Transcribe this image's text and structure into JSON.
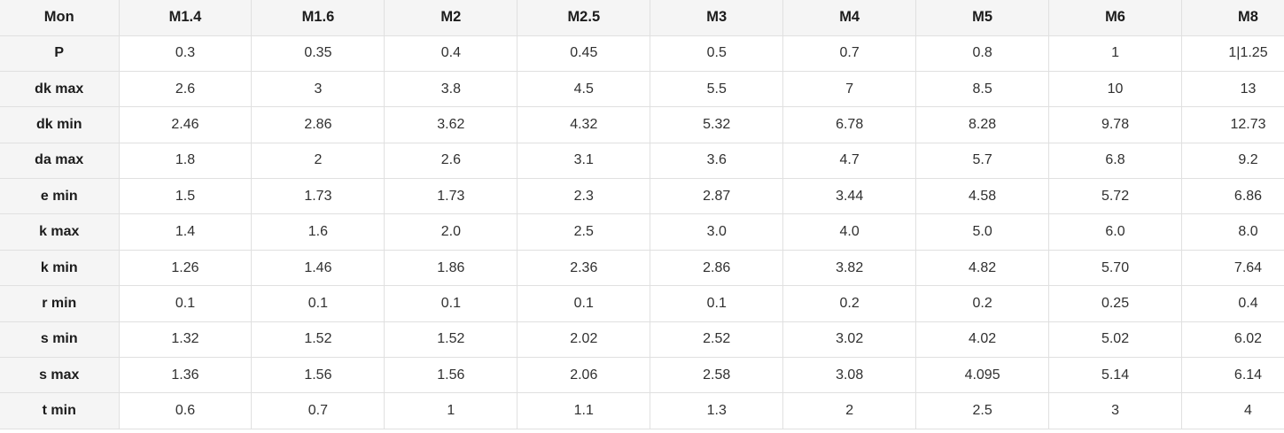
{
  "chart_data": {
    "type": "table",
    "columns": [
      "Mon",
      "M1.4",
      "M1.6",
      "M2",
      "M2.5",
      "M3",
      "M4",
      "M5",
      "M6",
      "M8"
    ],
    "rows": [
      {
        "label": "P",
        "values": [
          "0.3",
          "0.35",
          "0.4",
          "0.45",
          "0.5",
          "0.7",
          "0.8",
          "1",
          "1|1.25"
        ]
      },
      {
        "label": "dk max",
        "values": [
          "2.6",
          "3",
          "3.8",
          "4.5",
          "5.5",
          "7",
          "8.5",
          "10",
          "13"
        ]
      },
      {
        "label": "dk min",
        "values": [
          "2.46",
          "2.86",
          "3.62",
          "4.32",
          "5.32",
          "6.78",
          "8.28",
          "9.78",
          "12.73"
        ]
      },
      {
        "label": "da max",
        "values": [
          "1.8",
          "2",
          "2.6",
          "3.1",
          "3.6",
          "4.7",
          "5.7",
          "6.8",
          "9.2"
        ]
      },
      {
        "label": "e min",
        "values": [
          "1.5",
          "1.73",
          "1.73",
          "2.3",
          "2.87",
          "3.44",
          "4.58",
          "5.72",
          "6.86"
        ]
      },
      {
        "label": "k max",
        "values": [
          "1.4",
          "1.6",
          "2.0",
          "2.5",
          "3.0",
          "4.0",
          "5.0",
          "6.0",
          "8.0"
        ]
      },
      {
        "label": "k min",
        "values": [
          "1.26",
          "1.46",
          "1.86",
          "2.36",
          "2.86",
          "3.82",
          "4.82",
          "5.70",
          "7.64"
        ]
      },
      {
        "label": "r min",
        "values": [
          "0.1",
          "0.1",
          "0.1",
          "0.1",
          "0.1",
          "0.2",
          "0.2",
          "0.25",
          "0.4"
        ]
      },
      {
        "label": "s min",
        "values": [
          "1.32",
          "1.52",
          "1.52",
          "2.02",
          "2.52",
          "3.02",
          "4.02",
          "5.02",
          "6.02"
        ]
      },
      {
        "label": "s max",
        "values": [
          "1.36",
          "1.56",
          "1.56",
          "2.06",
          "2.58",
          "3.08",
          "4.095",
          "5.14",
          "6.14"
        ]
      },
      {
        "label": "t min",
        "values": [
          "0.6",
          "0.7",
          "1",
          "1.1",
          "1.3",
          "2",
          "2.5",
          "3",
          "4"
        ]
      }
    ]
  },
  "colors": {
    "header_bg": "#f5f5f5",
    "label_col_bg": "#f5f5f5",
    "border": "#e0e0e0",
    "text": "#1c1c1c",
    "value_text": "#303030",
    "page_bg": "#ffffff"
  }
}
